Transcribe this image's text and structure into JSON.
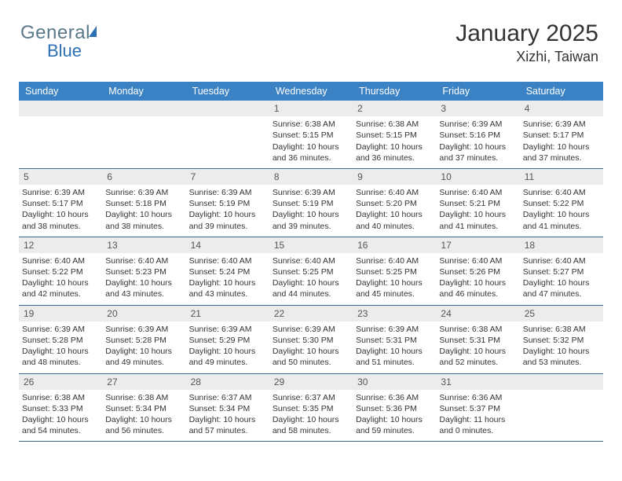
{
  "logo": {
    "part1": "Genera",
    "part2": "l",
    "part3": "Blue"
  },
  "title": "January 2025",
  "location": "Xizhi, Taiwan",
  "colors": {
    "header_bg": "#3b82c4",
    "header_text": "#ffffff",
    "daynum_bg": "#ececec",
    "border": "#3b6a95",
    "text": "#333333",
    "logo_blue": "#2d6fb5"
  },
  "days_of_week": [
    "Sunday",
    "Monday",
    "Tuesday",
    "Wednesday",
    "Thursday",
    "Friday",
    "Saturday"
  ],
  "weeks": [
    [
      null,
      null,
      null,
      {
        "n": "1",
        "sr": "6:38 AM",
        "ss": "5:15 PM",
        "dl": "10 hours",
        "dl2": "and 36 minutes."
      },
      {
        "n": "2",
        "sr": "6:38 AM",
        "ss": "5:15 PM",
        "dl": "10 hours",
        "dl2": "and 36 minutes."
      },
      {
        "n": "3",
        "sr": "6:39 AM",
        "ss": "5:16 PM",
        "dl": "10 hours",
        "dl2": "and 37 minutes."
      },
      {
        "n": "4",
        "sr": "6:39 AM",
        "ss": "5:17 PM",
        "dl": "10 hours",
        "dl2": "and 37 minutes."
      }
    ],
    [
      {
        "n": "5",
        "sr": "6:39 AM",
        "ss": "5:17 PM",
        "dl": "10 hours",
        "dl2": "and 38 minutes."
      },
      {
        "n": "6",
        "sr": "6:39 AM",
        "ss": "5:18 PM",
        "dl": "10 hours",
        "dl2": "and 38 minutes."
      },
      {
        "n": "7",
        "sr": "6:39 AM",
        "ss": "5:19 PM",
        "dl": "10 hours",
        "dl2": "and 39 minutes."
      },
      {
        "n": "8",
        "sr": "6:39 AM",
        "ss": "5:19 PM",
        "dl": "10 hours",
        "dl2": "and 39 minutes."
      },
      {
        "n": "9",
        "sr": "6:40 AM",
        "ss": "5:20 PM",
        "dl": "10 hours",
        "dl2": "and 40 minutes."
      },
      {
        "n": "10",
        "sr": "6:40 AM",
        "ss": "5:21 PM",
        "dl": "10 hours",
        "dl2": "and 41 minutes."
      },
      {
        "n": "11",
        "sr": "6:40 AM",
        "ss": "5:22 PM",
        "dl": "10 hours",
        "dl2": "and 41 minutes."
      }
    ],
    [
      {
        "n": "12",
        "sr": "6:40 AM",
        "ss": "5:22 PM",
        "dl": "10 hours",
        "dl2": "and 42 minutes."
      },
      {
        "n": "13",
        "sr": "6:40 AM",
        "ss": "5:23 PM",
        "dl": "10 hours",
        "dl2": "and 43 minutes."
      },
      {
        "n": "14",
        "sr": "6:40 AM",
        "ss": "5:24 PM",
        "dl": "10 hours",
        "dl2": "and 43 minutes."
      },
      {
        "n": "15",
        "sr": "6:40 AM",
        "ss": "5:25 PM",
        "dl": "10 hours",
        "dl2": "and 44 minutes."
      },
      {
        "n": "16",
        "sr": "6:40 AM",
        "ss": "5:25 PM",
        "dl": "10 hours",
        "dl2": "and 45 minutes."
      },
      {
        "n": "17",
        "sr": "6:40 AM",
        "ss": "5:26 PM",
        "dl": "10 hours",
        "dl2": "and 46 minutes."
      },
      {
        "n": "18",
        "sr": "6:40 AM",
        "ss": "5:27 PM",
        "dl": "10 hours",
        "dl2": "and 47 minutes."
      }
    ],
    [
      {
        "n": "19",
        "sr": "6:39 AM",
        "ss": "5:28 PM",
        "dl": "10 hours",
        "dl2": "and 48 minutes."
      },
      {
        "n": "20",
        "sr": "6:39 AM",
        "ss": "5:28 PM",
        "dl": "10 hours",
        "dl2": "and 49 minutes."
      },
      {
        "n": "21",
        "sr": "6:39 AM",
        "ss": "5:29 PM",
        "dl": "10 hours",
        "dl2": "and 49 minutes."
      },
      {
        "n": "22",
        "sr": "6:39 AM",
        "ss": "5:30 PM",
        "dl": "10 hours",
        "dl2": "and 50 minutes."
      },
      {
        "n": "23",
        "sr": "6:39 AM",
        "ss": "5:31 PM",
        "dl": "10 hours",
        "dl2": "and 51 minutes."
      },
      {
        "n": "24",
        "sr": "6:38 AM",
        "ss": "5:31 PM",
        "dl": "10 hours",
        "dl2": "and 52 minutes."
      },
      {
        "n": "25",
        "sr": "6:38 AM",
        "ss": "5:32 PM",
        "dl": "10 hours",
        "dl2": "and 53 minutes."
      }
    ],
    [
      {
        "n": "26",
        "sr": "6:38 AM",
        "ss": "5:33 PM",
        "dl": "10 hours",
        "dl2": "and 54 minutes."
      },
      {
        "n": "27",
        "sr": "6:38 AM",
        "ss": "5:34 PM",
        "dl": "10 hours",
        "dl2": "and 56 minutes."
      },
      {
        "n": "28",
        "sr": "6:37 AM",
        "ss": "5:34 PM",
        "dl": "10 hours",
        "dl2": "and 57 minutes."
      },
      {
        "n": "29",
        "sr": "6:37 AM",
        "ss": "5:35 PM",
        "dl": "10 hours",
        "dl2": "and 58 minutes."
      },
      {
        "n": "30",
        "sr": "6:36 AM",
        "ss": "5:36 PM",
        "dl": "10 hours",
        "dl2": "and 59 minutes."
      },
      {
        "n": "31",
        "sr": "6:36 AM",
        "ss": "5:37 PM",
        "dl": "11 hours",
        "dl2": "and 0 minutes."
      },
      null
    ]
  ],
  "labels": {
    "sunrise": "Sunrise:",
    "sunset": "Sunset:",
    "daylight": "Daylight:"
  }
}
